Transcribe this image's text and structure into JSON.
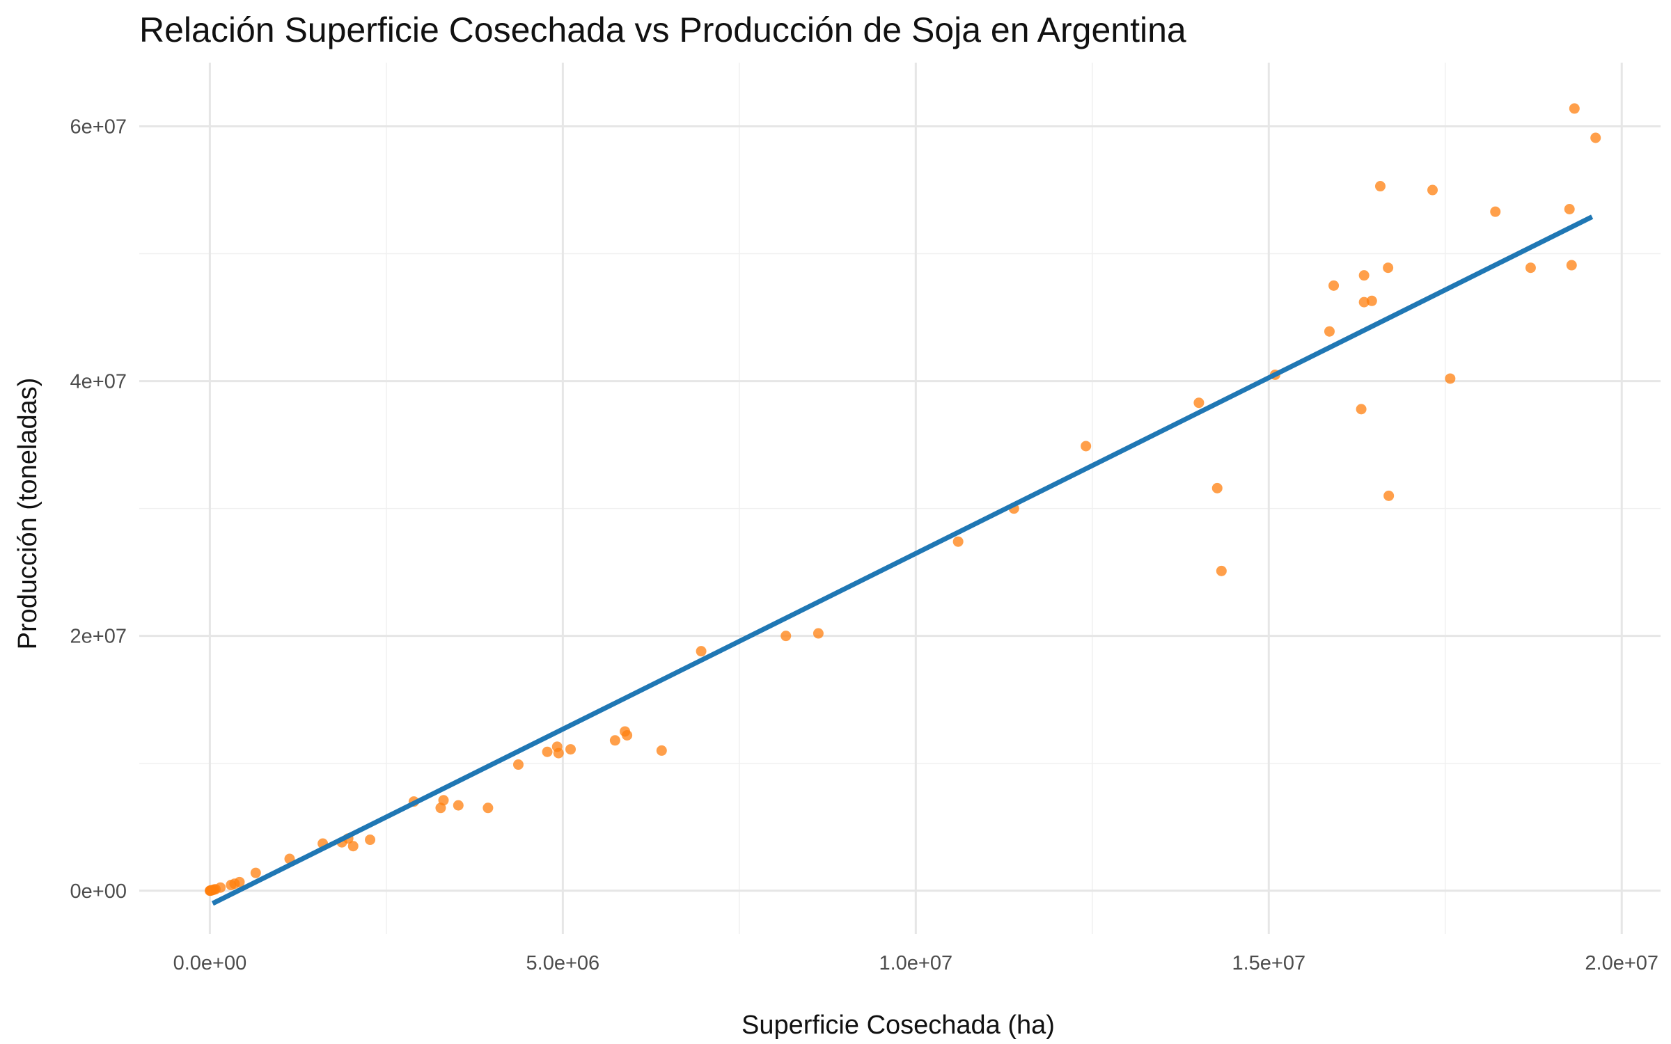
{
  "chart_data": {
    "type": "scatter",
    "title": "Relación Superficie Cosechada vs Producción de Soja en Argentina",
    "xlabel": "Superficie Cosechada (ha)",
    "ylabel": "Producción (toneladas)",
    "xlim": [
      -1000000,
      20550000
    ],
    "ylim": [
      -3400000,
      65000000
    ],
    "x_ticks": [
      {
        "value": 0,
        "label": "0.0e+00"
      },
      {
        "value": 5000000,
        "label": "5.0e+06"
      },
      {
        "value": 10000000,
        "label": "1.0e+07"
      },
      {
        "value": 15000000,
        "label": "1.5e+07"
      },
      {
        "value": 20000000,
        "label": "2.0e+07"
      }
    ],
    "y_ticks": [
      {
        "value": 0,
        "label": "0e+00"
      },
      {
        "value": 20000000,
        "label": "2e+07"
      },
      {
        "value": 40000000,
        "label": "4e+07"
      },
      {
        "value": 60000000,
        "label": "6e+07"
      }
    ],
    "x_minor_ticks": [
      2500000,
      7500000,
      12500000,
      17500000
    ],
    "y_minor_ticks": [
      10000000,
      30000000,
      50000000
    ],
    "grid": true,
    "point_color": "#FF7F0E",
    "line_color": "#1F77B4",
    "series": [
      {
        "type": "scatter",
        "points": [
          [
            1000,
            1000
          ],
          [
            5000,
            4000
          ],
          [
            10000,
            12000
          ],
          [
            20000,
            25000
          ],
          [
            40000,
            50000
          ],
          [
            60000,
            90000
          ],
          [
            80000,
            120000
          ],
          [
            150000,
            250000
          ],
          [
            300000,
            450000
          ],
          [
            350000,
            550000
          ],
          [
            420000,
            680000
          ],
          [
            650000,
            1400000
          ],
          [
            1130000,
            2500000
          ],
          [
            1600000,
            3700000
          ],
          [
            1870000,
            3800000
          ],
          [
            1960000,
            4100000
          ],
          [
            2030000,
            3500000
          ],
          [
            2270000,
            4000000
          ],
          [
            2890000,
            7000000
          ],
          [
            3270000,
            6500000
          ],
          [
            3310000,
            7100000
          ],
          [
            3520000,
            6700000
          ],
          [
            3940000,
            6500000
          ],
          [
            4370000,
            9900000
          ],
          [
            4780000,
            10900000
          ],
          [
            4920000,
            11300000
          ],
          [
            4940000,
            10800000
          ],
          [
            5110000,
            11100000
          ],
          [
            5740000,
            11800000
          ],
          [
            5880000,
            12500000
          ],
          [
            5910000,
            12200000
          ],
          [
            6400000,
            11000000
          ],
          [
            6960000,
            18800000
          ],
          [
            8160000,
            20000000
          ],
          [
            8620000,
            20200000
          ],
          [
            10600000,
            27400000
          ],
          [
            11390000,
            30000000
          ],
          [
            12410000,
            34900000
          ],
          [
            14010000,
            38300000
          ],
          [
            14270000,
            31600000
          ],
          [
            14330000,
            25100000
          ],
          [
            15090000,
            40500000
          ],
          [
            15860000,
            43900000
          ],
          [
            15920000,
            47500000
          ],
          [
            16310000,
            37800000
          ],
          [
            16350000,
            46200000
          ],
          [
            16350000,
            48300000
          ],
          [
            16460000,
            46300000
          ],
          [
            16580000,
            55300000
          ],
          [
            16690000,
            48900000
          ],
          [
            16700000,
            31000000
          ],
          [
            17320000,
            55000000
          ],
          [
            17570000,
            40200000
          ],
          [
            18210000,
            53300000
          ],
          [
            18710000,
            48900000
          ],
          [
            19260000,
            53500000
          ],
          [
            19290000,
            49100000
          ],
          [
            19330000,
            61400000
          ],
          [
            19630000,
            59100000
          ]
        ]
      },
      {
        "type": "line",
        "points": [
          [
            40000,
            -1000000
          ],
          [
            19580000,
            52900000
          ]
        ]
      }
    ]
  }
}
